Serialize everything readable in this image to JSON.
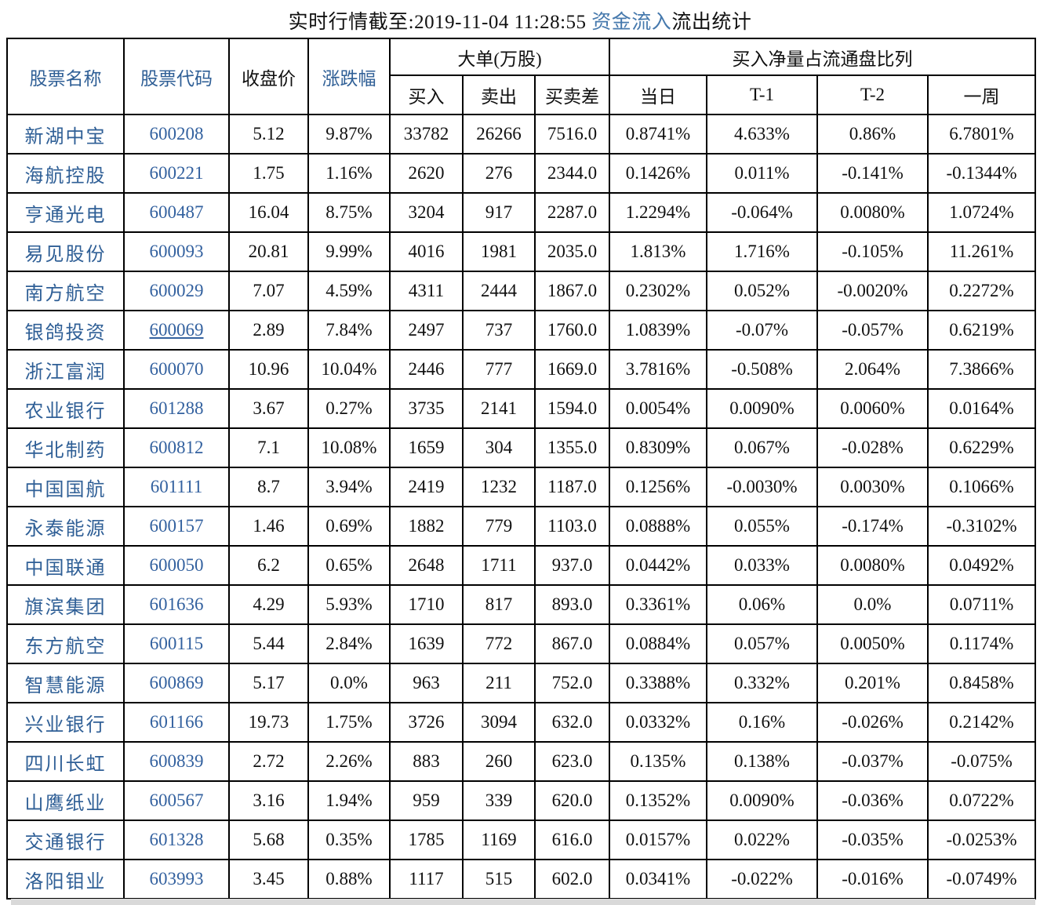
{
  "title": {
    "prefix": "实时行情截至:2019-11-04 11:28:55 ",
    "link": "资金流入",
    "suffix": "流出统计"
  },
  "colors": {
    "header_blue": "#2f5f96",
    "code_blue": "#33619f",
    "title_link_blue": "#4679ad",
    "text_black": "#101010",
    "border_black": "#000000",
    "bottom_shadow_gray": "#d9d9d9"
  },
  "table": {
    "headers": {
      "stock_name": "股票名称",
      "stock_code": "股票代码",
      "close_price": "收盘价",
      "change_pct": "涨跌幅",
      "large_orders_group": "大单(万股)",
      "buy": "买入",
      "sell": "卖出",
      "buy_sell_diff": "买卖差",
      "net_buy_ratio_group": "买入净量占流通盘比列",
      "today": "当日",
      "t_minus_1": "T-1",
      "t_minus_2": "T-2",
      "one_week": "一周"
    },
    "rows": [
      {
        "name": "新湖中宝",
        "code": "600208",
        "code_underlined": false,
        "close": "5.12",
        "change": "9.87%",
        "buy": "33782",
        "sell": "26266",
        "diff": "7516.0",
        "today": "0.8741%",
        "t1": "4.633%",
        "t2": "0.86%",
        "week": "6.7801%"
      },
      {
        "name": "海航控股",
        "code": "600221",
        "code_underlined": false,
        "close": "1.75",
        "change": "1.16%",
        "buy": "2620",
        "sell": "276",
        "diff": "2344.0",
        "today": "0.1426%",
        "t1": "0.011%",
        "t2": "-0.141%",
        "week": "-0.1344%"
      },
      {
        "name": "亨通光电",
        "code": "600487",
        "code_underlined": false,
        "close": "16.04",
        "change": "8.75%",
        "buy": "3204",
        "sell": "917",
        "diff": "2287.0",
        "today": "1.2294%",
        "t1": "-0.064%",
        "t2": "0.0080%",
        "week": "1.0724%"
      },
      {
        "name": "易见股份",
        "code": "600093",
        "code_underlined": false,
        "close": "20.81",
        "change": "9.99%",
        "buy": "4016",
        "sell": "1981",
        "diff": "2035.0",
        "today": "1.813%",
        "t1": "1.716%",
        "t2": "-0.105%",
        "week": "11.261%"
      },
      {
        "name": "南方航空",
        "code": "600029",
        "code_underlined": false,
        "close": "7.07",
        "change": "4.59%",
        "buy": "4311",
        "sell": "2444",
        "diff": "1867.0",
        "today": "0.2302%",
        "t1": "0.052%",
        "t2": "-0.0020%",
        "week": "0.2272%"
      },
      {
        "name": "银鸽投资",
        "code": "600069",
        "code_underlined": true,
        "close": "2.89",
        "change": "7.84%",
        "buy": "2497",
        "sell": "737",
        "diff": "1760.0",
        "today": "1.0839%",
        "t1": "-0.07%",
        "t2": "-0.057%",
        "week": "0.6219%"
      },
      {
        "name": "浙江富润",
        "code": "600070",
        "code_underlined": false,
        "close": "10.96",
        "change": "10.04%",
        "buy": "2446",
        "sell": "777",
        "diff": "1669.0",
        "today": "3.7816%",
        "t1": "-0.508%",
        "t2": "2.064%",
        "week": "7.3866%"
      },
      {
        "name": "农业银行",
        "code": "601288",
        "code_underlined": false,
        "close": "3.67",
        "change": "0.27%",
        "buy": "3735",
        "sell": "2141",
        "diff": "1594.0",
        "today": "0.0054%",
        "t1": "0.0090%",
        "t2": "0.0060%",
        "week": "0.0164%"
      },
      {
        "name": "华北制药",
        "code": "600812",
        "code_underlined": false,
        "close": "7.1",
        "change": "10.08%",
        "buy": "1659",
        "sell": "304",
        "diff": "1355.0",
        "today": "0.8309%",
        "t1": "0.067%",
        "t2": "-0.028%",
        "week": "0.6229%"
      },
      {
        "name": "中国国航",
        "code": "601111",
        "code_underlined": false,
        "close": "8.7",
        "change": "3.94%",
        "buy": "2419",
        "sell": "1232",
        "diff": "1187.0",
        "today": "0.1256%",
        "t1": "-0.0030%",
        "t2": "0.0030%",
        "week": "0.1066%"
      },
      {
        "name": "永泰能源",
        "code": "600157",
        "code_underlined": false,
        "close": "1.46",
        "change": "0.69%",
        "buy": "1882",
        "sell": "779",
        "diff": "1103.0",
        "today": "0.0888%",
        "t1": "0.055%",
        "t2": "-0.174%",
        "week": "-0.3102%"
      },
      {
        "name": "中国联通",
        "code": "600050",
        "code_underlined": false,
        "close": "6.2",
        "change": "0.65%",
        "buy": "2648",
        "sell": "1711",
        "diff": "937.0",
        "today": "0.0442%",
        "t1": "0.033%",
        "t2": "0.0080%",
        "week": "0.0492%"
      },
      {
        "name": "旗滨集团",
        "code": "601636",
        "code_underlined": false,
        "close": "4.29",
        "change": "5.93%",
        "buy": "1710",
        "sell": "817",
        "diff": "893.0",
        "today": "0.3361%",
        "t1": "0.06%",
        "t2": "0.0%",
        "week": "0.0711%"
      },
      {
        "name": "东方航空",
        "code": "600115",
        "code_underlined": false,
        "close": "5.44",
        "change": "2.84%",
        "buy": "1639",
        "sell": "772",
        "diff": "867.0",
        "today": "0.0884%",
        "t1": "0.057%",
        "t2": "0.0050%",
        "week": "0.1174%"
      },
      {
        "name": "智慧能源",
        "code": "600869",
        "code_underlined": false,
        "close": "5.17",
        "change": "0.0%",
        "buy": "963",
        "sell": "211",
        "diff": "752.0",
        "today": "0.3388%",
        "t1": "0.332%",
        "t2": "0.201%",
        "week": "0.8458%"
      },
      {
        "name": "兴业银行",
        "code": "601166",
        "code_underlined": false,
        "close": "19.73",
        "change": "1.75%",
        "buy": "3726",
        "sell": "3094",
        "diff": "632.0",
        "today": "0.0332%",
        "t1": "0.16%",
        "t2": "-0.026%",
        "week": "0.2142%"
      },
      {
        "name": "四川长虹",
        "code": "600839",
        "code_underlined": false,
        "close": "2.72",
        "change": "2.26%",
        "buy": "883",
        "sell": "260",
        "diff": "623.0",
        "today": "0.135%",
        "t1": "0.138%",
        "t2": "-0.037%",
        "week": "-0.075%"
      },
      {
        "name": "山鹰纸业",
        "code": "600567",
        "code_underlined": false,
        "close": "3.16",
        "change": "1.94%",
        "buy": "959",
        "sell": "339",
        "diff": "620.0",
        "today": "0.1352%",
        "t1": "0.0090%",
        "t2": "-0.036%",
        "week": "0.0722%"
      },
      {
        "name": "交通银行",
        "code": "601328",
        "code_underlined": false,
        "close": "5.68",
        "change": "0.35%",
        "buy": "1785",
        "sell": "1169",
        "diff": "616.0",
        "today": "0.0157%",
        "t1": "0.022%",
        "t2": "-0.035%",
        "week": "-0.0253%"
      },
      {
        "name": "洛阳钼业",
        "code": "603993",
        "code_underlined": false,
        "close": "3.45",
        "change": "0.88%",
        "buy": "1117",
        "sell": "515",
        "diff": "602.0",
        "today": "0.0341%",
        "t1": "-0.022%",
        "t2": "-0.016%",
        "week": "-0.0749%"
      }
    ]
  }
}
